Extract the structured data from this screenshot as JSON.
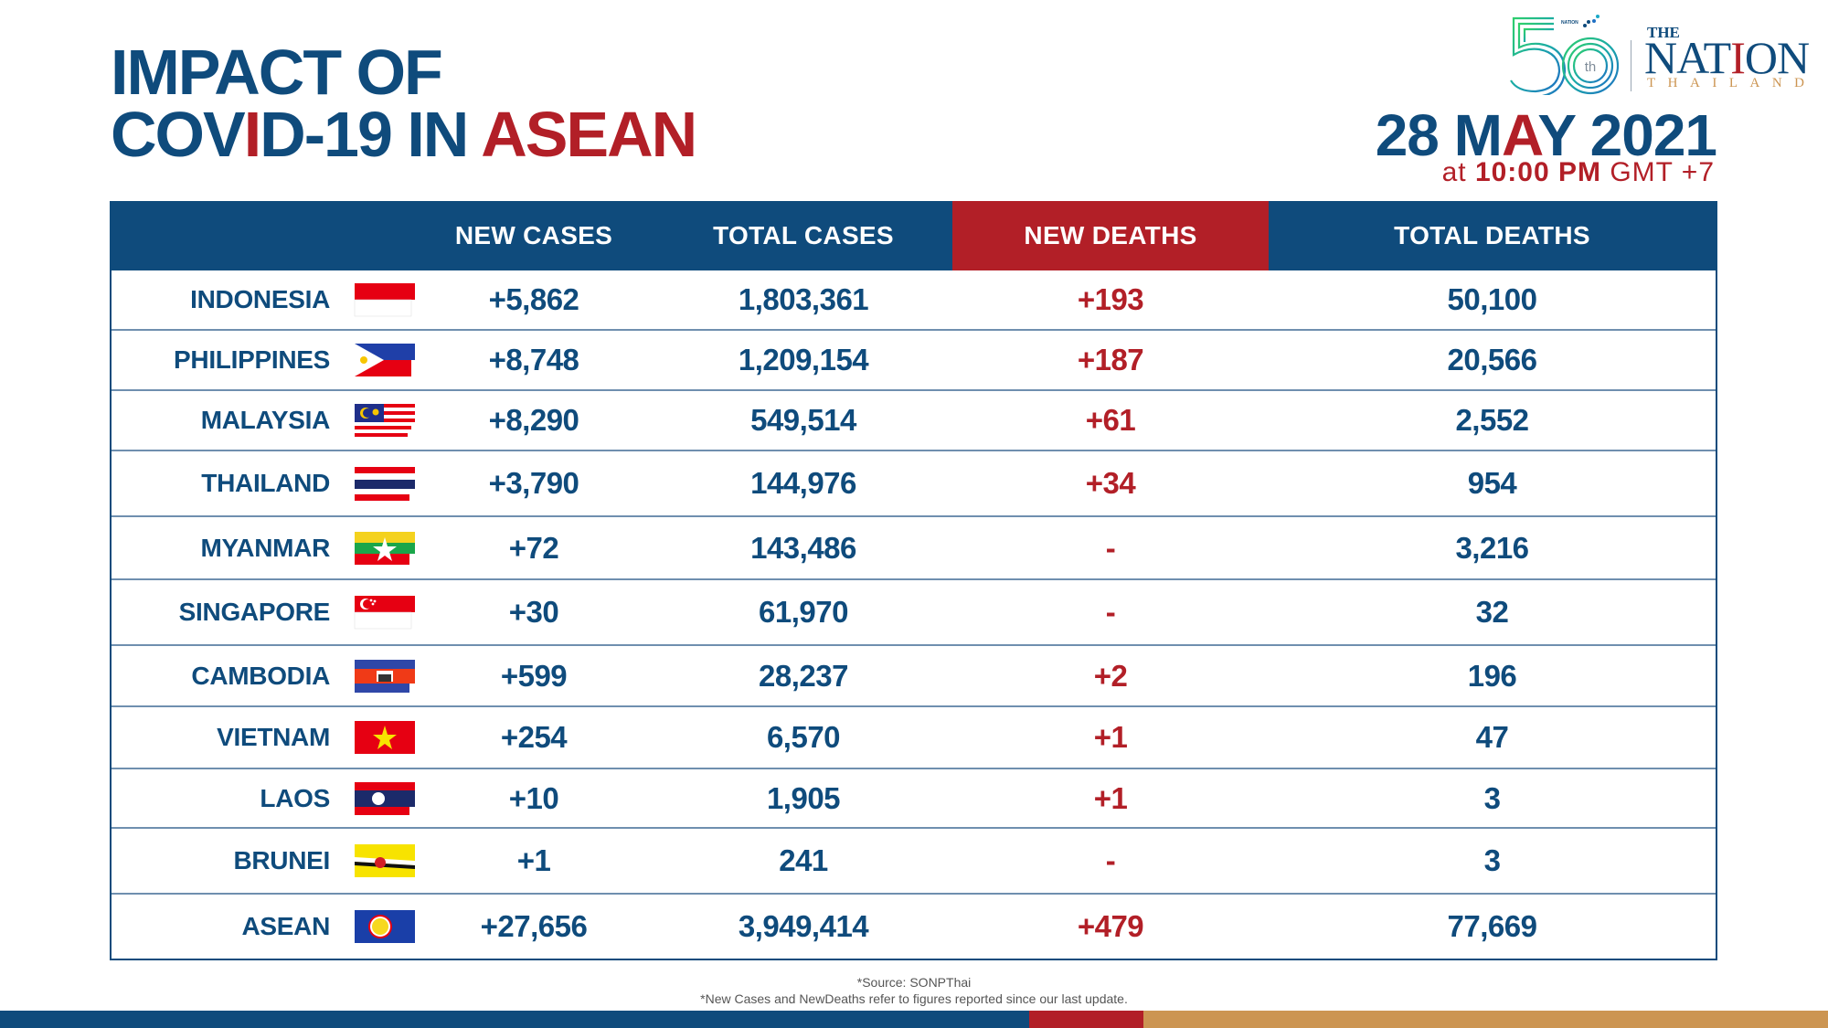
{
  "header": {
    "title_line1": "IMPACT OF",
    "title_line2_a": "COV",
    "title_line2_b": "I",
    "title_line2_c": "D-19 IN ",
    "title_line2_d": "ASEAN",
    "date_day": "28 M",
    "date_a": "A",
    "date_rest": "Y 2021",
    "time_prefix": "at ",
    "time_value": "10:00 PM",
    "time_suffix": " GMT +7"
  },
  "logo": {
    "anniversary": "50",
    "anniversary_suffix": "th",
    "group": "NATION GROUP",
    "the": "THE",
    "nation_a": "NAT",
    "nation_b": "I",
    "nation_c": "ON",
    "thailand": "THAILAND"
  },
  "colors": {
    "primary_blue": "#0f4b7c",
    "accent_red": "#b21f27",
    "tan": "#cc9552"
  },
  "chart_data": {
    "type": "table",
    "title": "IMPACT OF COVID-19 IN ASEAN",
    "subtitle": "28 MAY 2021 at 10:00 PM GMT +7",
    "columns": [
      "",
      "NEW CASES",
      "TOTAL CASES",
      "NEW DEATHS",
      "TOTAL DEATHS"
    ],
    "rows": [
      {
        "country": "INDONESIA",
        "flag": "indonesia-flag-icon",
        "new_cases": "+5,862",
        "total_cases": "1,803,361",
        "new_deaths": "+193",
        "total_deaths": "50,100"
      },
      {
        "country": "PHILIPPINES",
        "flag": "philippines-flag-icon",
        "new_cases": "+8,748",
        "total_cases": "1,209,154",
        "new_deaths": "+187",
        "total_deaths": "20,566"
      },
      {
        "country": "MALAYSIA",
        "flag": "malaysia-flag-icon",
        "new_cases": "+8,290",
        "total_cases": "549,514",
        "new_deaths": "+61",
        "total_deaths": "2,552"
      },
      {
        "country": "THAILAND",
        "flag": "thailand-flag-icon",
        "new_cases": "+3,790",
        "total_cases": "144,976",
        "new_deaths": "+34",
        "total_deaths": "954"
      },
      {
        "country": "MYANMAR",
        "flag": "myanmar-flag-icon",
        "new_cases": "+72",
        "total_cases": "143,486",
        "new_deaths": "-",
        "total_deaths": "3,216"
      },
      {
        "country": "SINGAPORE",
        "flag": "singapore-flag-icon",
        "new_cases": "+30",
        "total_cases": "61,970",
        "new_deaths": "-",
        "total_deaths": "32"
      },
      {
        "country": "CAMBODIA",
        "flag": "cambodia-flag-icon",
        "new_cases": "+599",
        "total_cases": "28,237",
        "new_deaths": "+2",
        "total_deaths": "196"
      },
      {
        "country": "VIETNAM",
        "flag": "vietnam-flag-icon",
        "new_cases": "+254",
        "total_cases": "6,570",
        "new_deaths": "+1",
        "total_deaths": "47"
      },
      {
        "country": "LAOS",
        "flag": "laos-flag-icon",
        "new_cases": "+10",
        "total_cases": "1,905",
        "new_deaths": "+1",
        "total_deaths": "3"
      },
      {
        "country": "BRUNEI",
        "flag": "brunei-flag-icon",
        "new_cases": "+1",
        "total_cases": "241",
        "new_deaths": "-",
        "total_deaths": "3"
      },
      {
        "country": "ASEAN",
        "flag": "asean-flag-icon",
        "new_cases": "+27,656",
        "total_cases": "3,949,414",
        "new_deaths": "+479",
        "total_deaths": "77,669"
      }
    ]
  },
  "footer": {
    "source": "*Source: SONPThai",
    "note": "*New Cases and NewDeaths refer to figures reported since our last update."
  }
}
